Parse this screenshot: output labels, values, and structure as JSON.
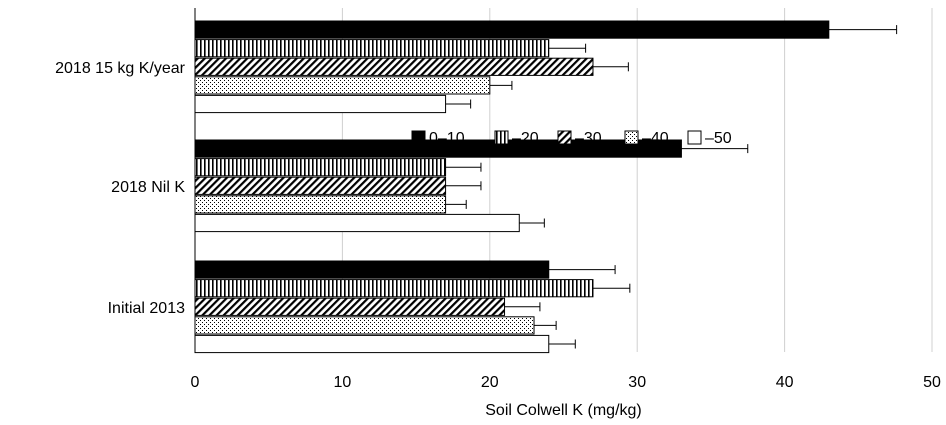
{
  "chart_data": {
    "type": "bar",
    "orientation": "horizontal",
    "title": "",
    "xlabel": "Soil Colwell K (mg/kg)",
    "ylabel": "",
    "xlim": [
      0,
      50
    ],
    "x_ticks": [
      0,
      10,
      20,
      30,
      40,
      50
    ],
    "grid": "vertical lines at major ticks",
    "legend_position": "right, between top and middle group",
    "categories": [
      "2018 15 kg K/year",
      "2018 Nil K",
      "Initial 2013"
    ],
    "series": [
      {
        "name": "0–10",
        "pattern": "solid",
        "values": [
          43,
          33,
          24
        ],
        "errors": [
          4.6,
          4.5,
          4.5
        ]
      },
      {
        "name": "–20",
        "pattern": "vertical-lines",
        "values": [
          24,
          17,
          27
        ],
        "errors": [
          2.5,
          2.4,
          2.5
        ]
      },
      {
        "name": "–30",
        "pattern": "diagonal-lines",
        "values": [
          27,
          17,
          21
        ],
        "errors": [
          2.4,
          2.4,
          2.4
        ]
      },
      {
        "name": "–40",
        "pattern": "dots",
        "values": [
          20,
          17,
          23
        ],
        "errors": [
          1.5,
          1.4,
          1.5
        ]
      },
      {
        "name": "–50",
        "pattern": "empty",
        "values": [
          17,
          22,
          24
        ],
        "errors": [
          1.7,
          1.7,
          1.8
        ]
      }
    ]
  }
}
